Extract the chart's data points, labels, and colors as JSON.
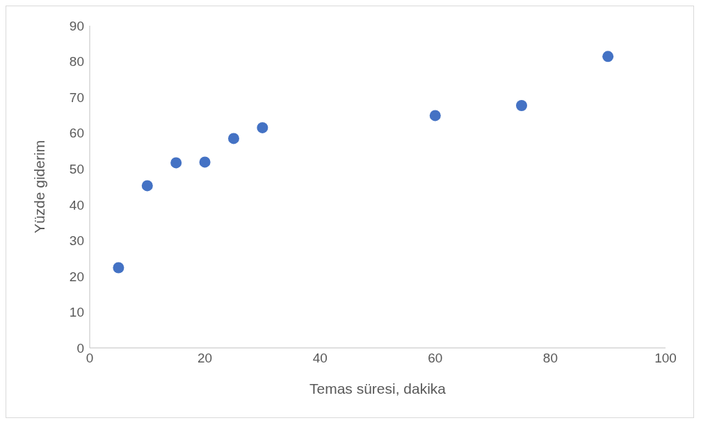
{
  "chart_data": {
    "type": "scatter",
    "xlabel": "Temas süresi, dakika",
    "ylabel": "Yüzde giderim",
    "x": [
      5,
      10,
      15,
      20,
      25,
      30,
      60,
      75,
      90
    ],
    "series": [
      {
        "color": "#4472c4",
        "values": [
          22.4,
          45.3,
          51.7,
          51.9,
          58.5,
          61.5,
          64.9,
          67.7,
          81.4
        ]
      }
    ],
    "xlim": [
      0,
      100
    ],
    "xticks": [
      0,
      20,
      40,
      60,
      80,
      100
    ],
    "ylim": [
      0,
      90
    ],
    "yticks": [
      0,
      10,
      20,
      30,
      40,
      50,
      60,
      70,
      80,
      90
    ],
    "grid": false,
    "legend": false,
    "marker": "circle"
  }
}
